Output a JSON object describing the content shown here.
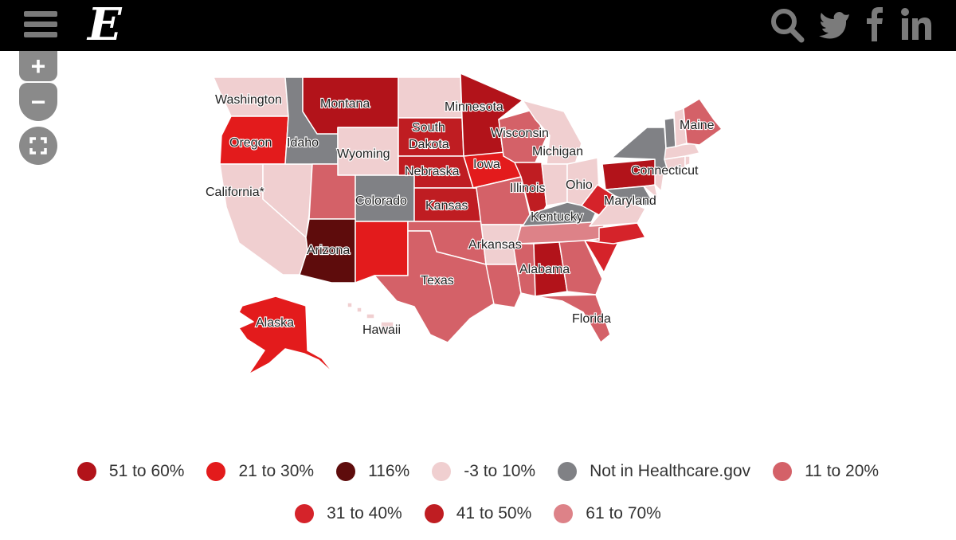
{
  "header": {
    "logo_text": "E",
    "icons": [
      "menu-icon",
      "search-icon",
      "twitter-icon",
      "facebook-icon",
      "linkedin-icon"
    ]
  },
  "map_controls": {
    "zoom_in": "+",
    "zoom_out": "−",
    "fullscreen": "fullscreen-icon"
  },
  "colors": {
    "c51_60": "#b2131a",
    "c21_30": "#e31b1c",
    "c116": "#5e0c0c",
    "cneg3_10": "#f0cfd0",
    "cnot": "#808185",
    "c11_20": "#d46168",
    "c31_40": "#d5232a",
    "c41_50": "#bf1d22",
    "c61_70": "#dd8288"
  },
  "map": {
    "states": [
      {
        "label": "Washington",
        "category": "cneg3_10"
      },
      {
        "label": "Oregon",
        "category": "c21_30"
      },
      {
        "label": "California*",
        "category": "cneg3_10"
      },
      {
        "label": "Idaho",
        "category": "cnot"
      },
      {
        "label": "Montana",
        "category": "c51_60"
      },
      {
        "label": "Wyoming",
        "category": "cneg3_10"
      },
      {
        "label": "South Dakota",
        "category": "c41_50"
      },
      {
        "label": "Minnesota",
        "category": "c51_60"
      },
      {
        "label": "Wisconsin",
        "category": "c11_20"
      },
      {
        "label": "Michigan",
        "category": "cneg3_10"
      },
      {
        "label": "Nebraska",
        "category": "c41_50"
      },
      {
        "label": "Iowa",
        "category": "c21_30"
      },
      {
        "label": "Illinois",
        "category": "c41_50"
      },
      {
        "label": "Colorado",
        "category": "cnot"
      },
      {
        "label": "Kansas",
        "category": "c41_50"
      },
      {
        "label": "Ohio",
        "category": "cneg3_10"
      },
      {
        "label": "Kentucky",
        "category": "cnot"
      },
      {
        "label": "Arizona",
        "category": "c116"
      },
      {
        "label": "Arkansas",
        "category": "cneg3_10"
      },
      {
        "label": "Texas",
        "category": "c11_20"
      },
      {
        "label": "Alabama",
        "category": "c51_60"
      },
      {
        "label": "Florida",
        "category": "c11_20"
      },
      {
        "label": "Maryland",
        "category": "cneg3_10"
      },
      {
        "label": "Connecticut",
        "category": "cneg3_10"
      },
      {
        "label": "Maine",
        "category": "c11_20"
      },
      {
        "label": "Alaska",
        "category": "c21_30"
      },
      {
        "label": "Hawaii",
        "category": "cneg3_10"
      }
    ]
  },
  "legend": {
    "rows": [
      [
        {
          "label": "51 to 60%",
          "color": "#b2131a"
        },
        {
          "label": "21 to 30%",
          "color": "#e31b1c"
        },
        {
          "label": "116%",
          "color": "#5e0c0c"
        },
        {
          "label": "-3 to 10%",
          "color": "#f0cfd0"
        },
        {
          "label": "Not in Healthcare.gov",
          "color": "#808185"
        },
        {
          "label": "11 to 20%",
          "color": "#d46168"
        }
      ],
      [
        {
          "label": "31 to 40%",
          "color": "#d5232a"
        },
        {
          "label": "41 to 50%",
          "color": "#bf1d22"
        },
        {
          "label": "61 to 70%",
          "color": "#dd8288"
        }
      ]
    ]
  }
}
